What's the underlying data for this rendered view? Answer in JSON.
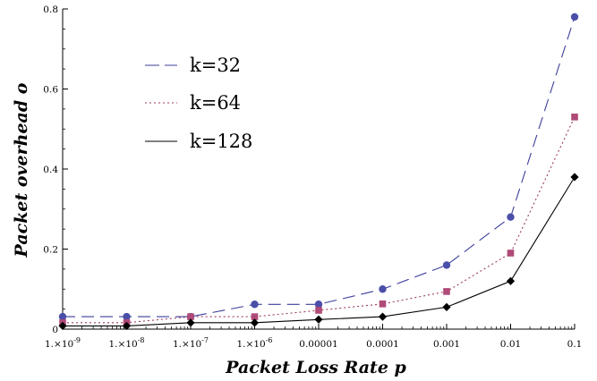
{
  "chart_data": {
    "type": "line",
    "title": "",
    "xlabel": "Packet Loss Rate p",
    "ylabel": "Packet overhead o",
    "x_scale": "log",
    "x": [
      1e-09,
      1e-08,
      1e-07,
      1e-06,
      1e-05,
      0.0001,
      0.001,
      0.01,
      0.1
    ],
    "x_tick_labels": [
      "1.×10",
      "1.×10",
      "1.×10",
      "1.×10",
      "0.00001",
      "0.0001",
      "0.001",
      "0.01",
      "0.1"
    ],
    "x_tick_exponents": [
      "-9",
      "-8",
      "-7",
      "-6",
      "",
      "",
      "",
      "",
      ""
    ],
    "ylim": [
      0,
      0.8
    ],
    "y_ticks": [
      0,
      0.2,
      0.4,
      0.6,
      0.8
    ],
    "y_tick_labels": [
      "0",
      "0.2",
      "0.4",
      "0.6",
      "0.8"
    ],
    "legend_placement": "top-left",
    "grid": false,
    "series": [
      {
        "name": "k=32",
        "color": "#3b3f9a",
        "marker_color": "#4a4fa8",
        "line_style": "dashed",
        "marker": "circle",
        "values": [
          0.031,
          0.031,
          0.031,
          0.062,
          0.062,
          0.1,
          0.16,
          0.28,
          0.78
        ]
      },
      {
        "name": "k=64",
        "color": "#9c3b63",
        "marker_color": "#b04a78",
        "line_style": "dotted",
        "marker": "square",
        "values": [
          0.016,
          0.016,
          0.031,
          0.031,
          0.047,
          0.063,
          0.094,
          0.19,
          0.53
        ]
      },
      {
        "name": "k=128",
        "color": "#000000",
        "marker_color": "#000000",
        "line_style": "solid",
        "marker": "diamond",
        "values": [
          0.008,
          0.008,
          0.016,
          0.016,
          0.024,
          0.031,
          0.055,
          0.12,
          0.38
        ]
      }
    ]
  }
}
